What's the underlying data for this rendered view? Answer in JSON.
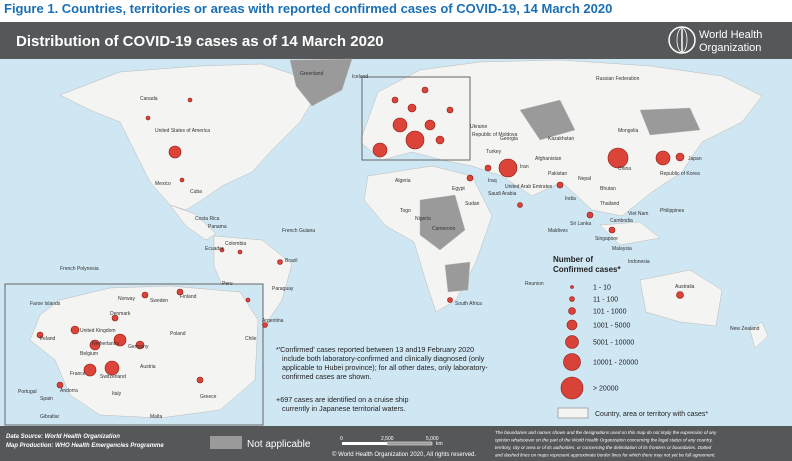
{
  "figure_caption": "Figure 1. Countries, territories or areas with reported confirmed cases of COVID-19, 14 March 2020",
  "header": {
    "title": "Distribution of COVID-19  cases as of 14 March 2020",
    "logo_line1": "World Health",
    "logo_line2": "Organization"
  },
  "labels": [
    "Canada",
    "United States of America",
    "Mexico",
    "Cuba",
    "Costa Rica",
    "Panama",
    "Colombia",
    "Ecuador",
    "Peru",
    "Brazil",
    "Chile",
    "Argentina",
    "Paraguay",
    "French Guiana",
    "Greenland",
    "Iceland",
    "Russian Federation",
    "Mongolia",
    "China",
    "Japan",
    "Republic of Korea",
    "India",
    "Pakistan",
    "Iran",
    "Iraq",
    "Egypt",
    "Algeria",
    "Nigeria",
    "Cameroon",
    "Togo",
    "Sudan",
    "South Africa",
    "Reunion",
    "Australia",
    "New Zealand",
    "Philippines",
    "Malaysia",
    "Singapore",
    "Indonesia",
    "Viet Nam",
    "Thailand",
    "Cambodia",
    "Sri Lanka",
    "Maldives",
    "Afghanistan",
    "Nepal",
    "Bhutan",
    "Kazakhstan",
    "United Arab Emirates",
    "Saudi Arabia",
    "Turkey",
    "Georgia",
    "French Polynesia",
    "Ukraine",
    "Republic of Moldova"
  ],
  "inset_labels": [
    "Faroe Islands",
    "Norway",
    "Sweden",
    "Finland",
    "Ireland",
    "United Kingdom",
    "Denmark",
    "Netherlands",
    "Belgium",
    "Germany",
    "Poland",
    "France",
    "Switzerland",
    "Austria",
    "Spain",
    "Portugal",
    "Italy",
    "Greece",
    "Gibraltar",
    "Andorra",
    "Malta"
  ],
  "legend": {
    "title_line1": "Number of",
    "title_line2": "Confirmed cases*",
    "items": [
      "1 - 10",
      "11 - 100",
      "101 - 1000",
      "1001 - 5000",
      "5001 - 10000",
      "10001 - 20000",
      "> 20000"
    ],
    "with_cases": "Country, area or territory with cases*"
  },
  "notes": {
    "confirmed": [
      "*'Confirmed' cases reported between 13 and19 February 2020",
      "include both laboratory-confirmed and clinically diagnosed (only",
      "applicable to Hubei province); for all other dates, only laboratory-",
      "confirmed cases are shown."
    ],
    "cruise": [
      "+697 cases are identified on a cruise ship",
      "currently in Japanese territorial waters."
    ]
  },
  "footer": {
    "data_source": "Data Source: World Health Organization",
    "map_production": "Map Production: WHO Health Emergencies Programme",
    "not_applicable": "Not applicable",
    "scale": [
      "0",
      "2,500",
      "5,000",
      "km"
    ],
    "copyright": "© World Health Organization 2020, All rights reserved.",
    "disclaimer": [
      "The boundaries and names shown and the designations used on this map do not imply the expression of any",
      "opinion whatsoever on the part of the World Health Organization concerning the legal status of any country,",
      "territory, city or area or of its authorities, or concerning the delimitation of its frontiers or boundaries. Dotted",
      "and dashed lines on maps represent approximate border lines for which there may not yet be full agreement."
    ]
  }
}
